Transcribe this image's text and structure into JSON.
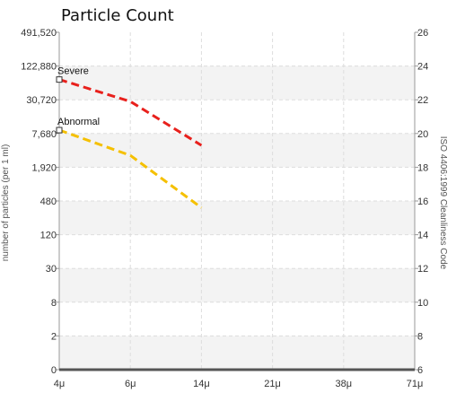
{
  "chart_data": {
    "type": "line",
    "title": "Particle Count",
    "ylabel": "number of particles (per 1 ml)",
    "y2label": "ISO 4406:1999 Cleanliness Code",
    "x_tick_labels": [
      "4μ",
      "6μ",
      "14μ",
      "21μ",
      "38μ",
      "71μ"
    ],
    "y_tick_labels": [
      "0",
      "2",
      "8",
      "30",
      "120",
      "480",
      "1,920",
      "7,680",
      "30,720",
      "122,880",
      "491,520"
    ],
    "y_scale": "log (doubling per ISO code)",
    "y2_tick_labels": [
      "6",
      "8",
      "10",
      "12",
      "14",
      "16",
      "18",
      "20",
      "22",
      "24",
      "26"
    ],
    "y2lim": [
      6,
      26
    ],
    "grid": true,
    "series": [
      {
        "name": "Severe",
        "color": "#e8201c",
        "style": "dashed",
        "x": [
          "4μ",
          "6μ",
          "14μ"
        ],
        "values_iso_code": [
          23.2,
          21.9,
          19.3
        ]
      },
      {
        "name": "Abnormal",
        "color": "#f5c000",
        "style": "dashed",
        "x": [
          "4μ",
          "6μ",
          "14μ"
        ],
        "values_iso_code": [
          20.2,
          18.7,
          15.6
        ]
      }
    ]
  }
}
